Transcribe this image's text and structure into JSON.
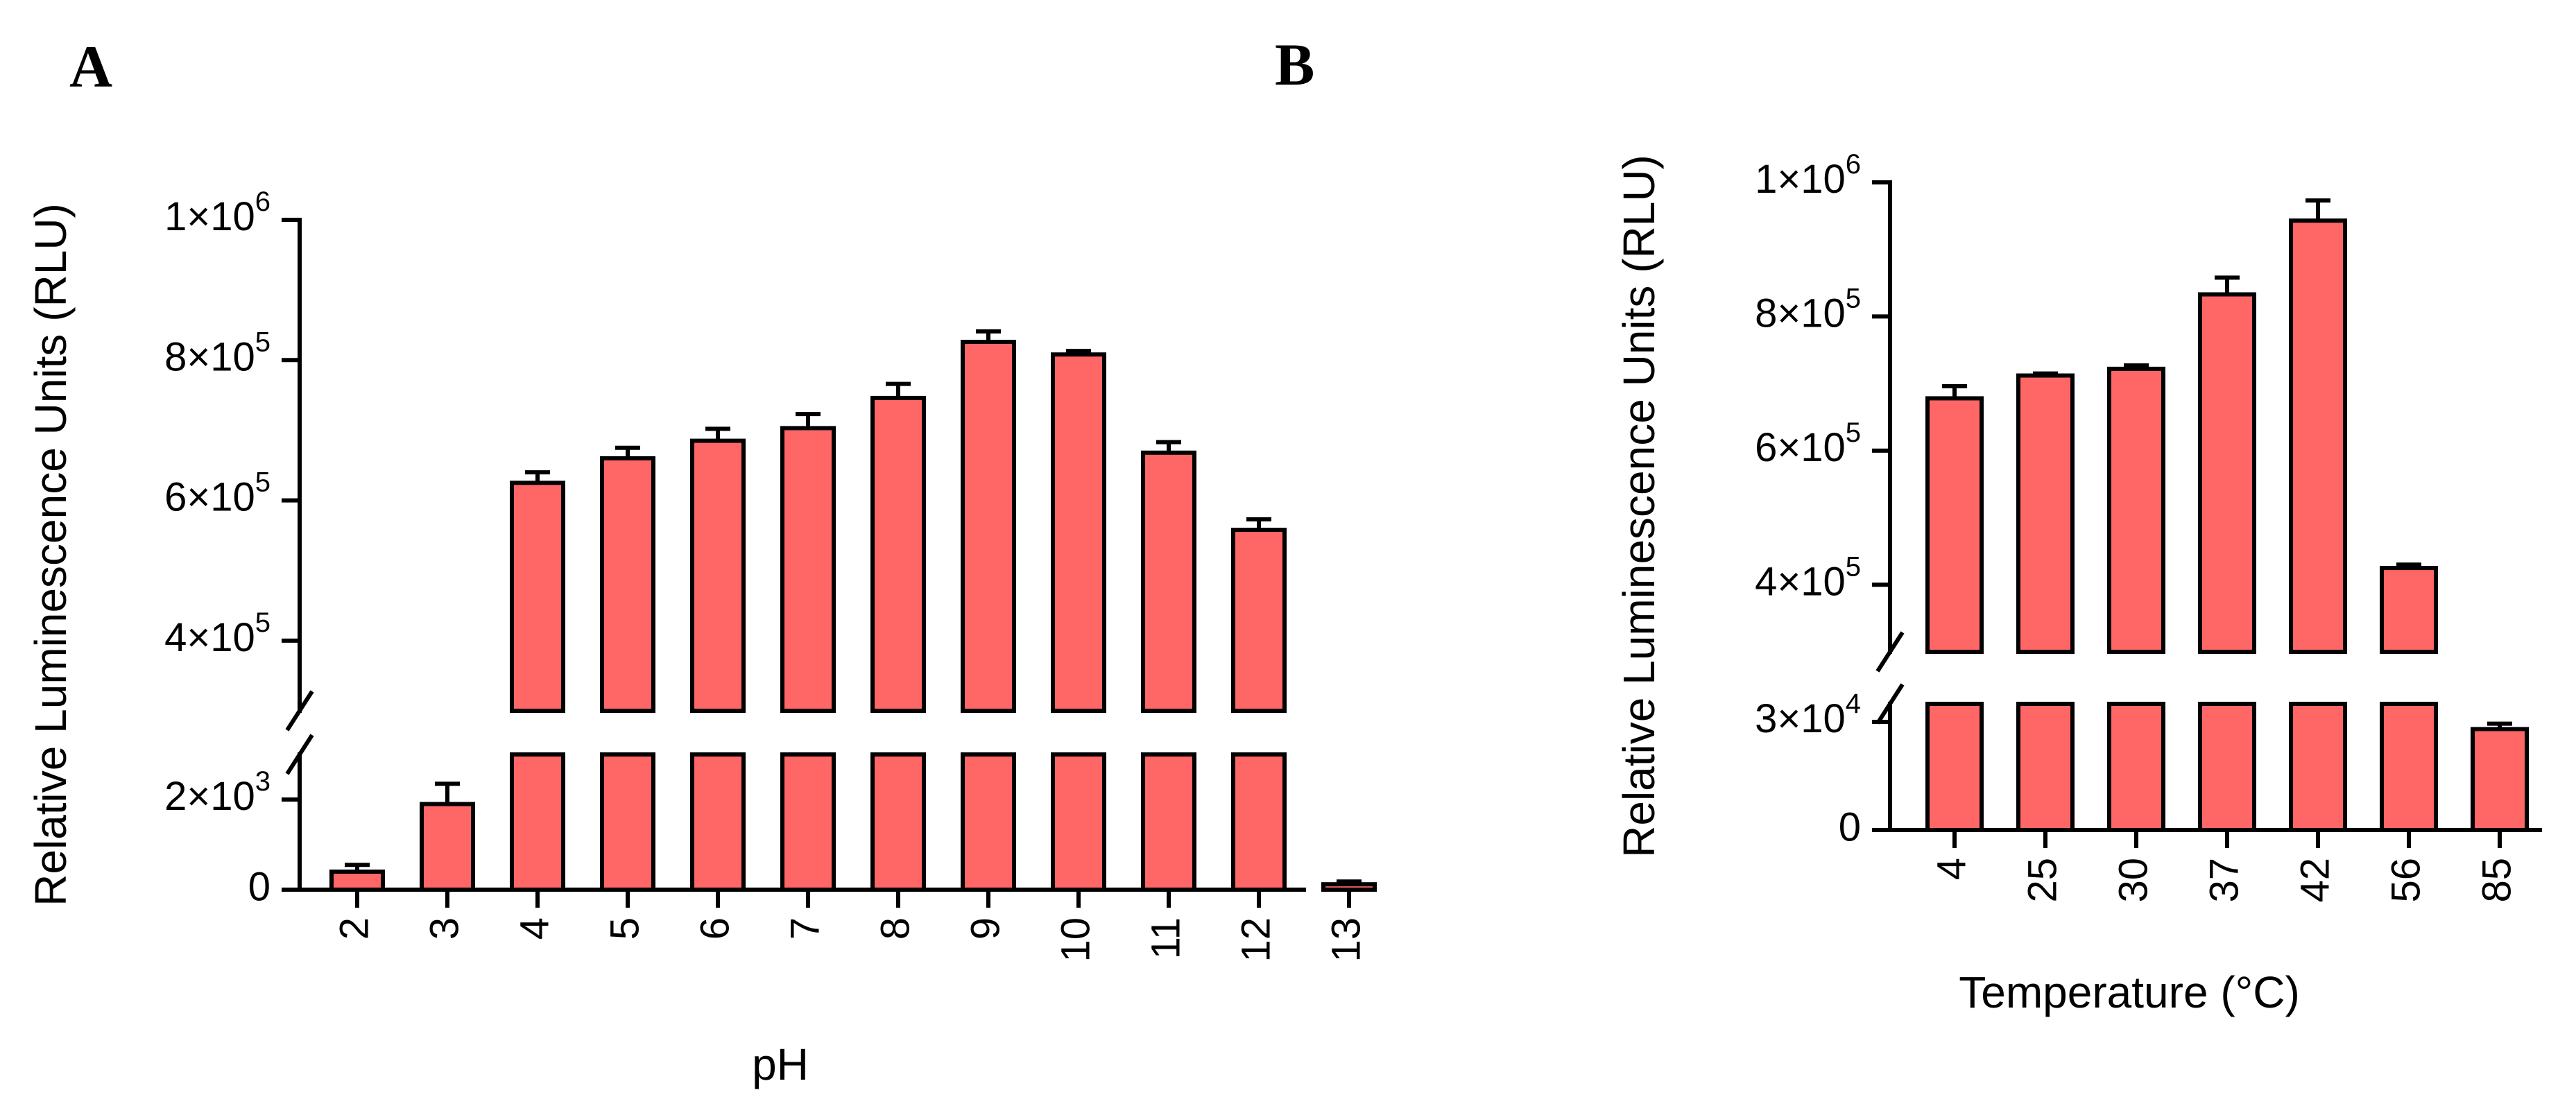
{
  "colors": {
    "bar_fill": "#FF6666",
    "axis": "#000000"
  },
  "chart_data": [
    {
      "id": "A",
      "type": "bar",
      "panel_label": "A",
      "title": "",
      "xlabel": "pH",
      "ylabel": "Relative Luminescence Units (RLU)",
      "categories": [
        "2",
        "3",
        "4",
        "5",
        "6",
        "7",
        "8",
        "9",
        "10",
        "11",
        "12",
        "13"
      ],
      "values": [
        400,
        1900,
        625000,
        660000,
        685000,
        703000,
        746000,
        826000,
        808000,
        668000,
        558000,
        120
      ],
      "errors": [
        150,
        450,
        15000,
        15000,
        17000,
        20000,
        20000,
        15000,
        5000,
        15000,
        15000,
        60
      ],
      "y_axis_broken": true,
      "y_lower_segment": {
        "range": [
          0,
          3000
        ],
        "ticks": [
          {
            "value": 0,
            "label": "0"
          },
          {
            "value": 2000,
            "base": "2×10",
            "exp": "3"
          }
        ]
      },
      "y_upper_segment": {
        "range": [
          300000,
          1000000
        ],
        "ticks": [
          {
            "value": 400000,
            "base": "4×10",
            "exp": "5"
          },
          {
            "value": 600000,
            "base": "6×10",
            "exp": "5"
          },
          {
            "value": 800000,
            "base": "8×10",
            "exp": "5"
          },
          {
            "value": 1000000,
            "base": "1×10",
            "exp": "6"
          }
        ]
      },
      "grid": false
    },
    {
      "id": "B",
      "type": "bar",
      "panel_label": "B",
      "title": "",
      "xlabel": "Temperature (°C)",
      "ylabel": "Relative Luminescence Units (RLU)",
      "categories": [
        "4",
        "25",
        "30",
        "37",
        "42",
        "56",
        "85"
      ],
      "values": [
        678000,
        712000,
        722000,
        833000,
        943000,
        425000,
        28000
      ],
      "errors": [
        18000,
        3000,
        5000,
        25000,
        30000,
        5000,
        1500
      ],
      "y_axis_broken": true,
      "y_lower_segment": {
        "range": [
          0,
          35000
        ],
        "ticks": [
          {
            "value": 0,
            "label": "0"
          },
          {
            "value": 30000,
            "base": "3×10",
            "exp": "4"
          }
        ]
      },
      "y_upper_segment": {
        "range": [
          300000,
          1000000
        ],
        "ticks": [
          {
            "value": 400000,
            "base": "4×10",
            "exp": "5"
          },
          {
            "value": 600000,
            "base": "6×10",
            "exp": "5"
          },
          {
            "value": 800000,
            "base": "8×10",
            "exp": "5"
          },
          {
            "value": 1000000,
            "base": "1×10",
            "exp": "6"
          }
        ]
      },
      "grid": false
    }
  ]
}
